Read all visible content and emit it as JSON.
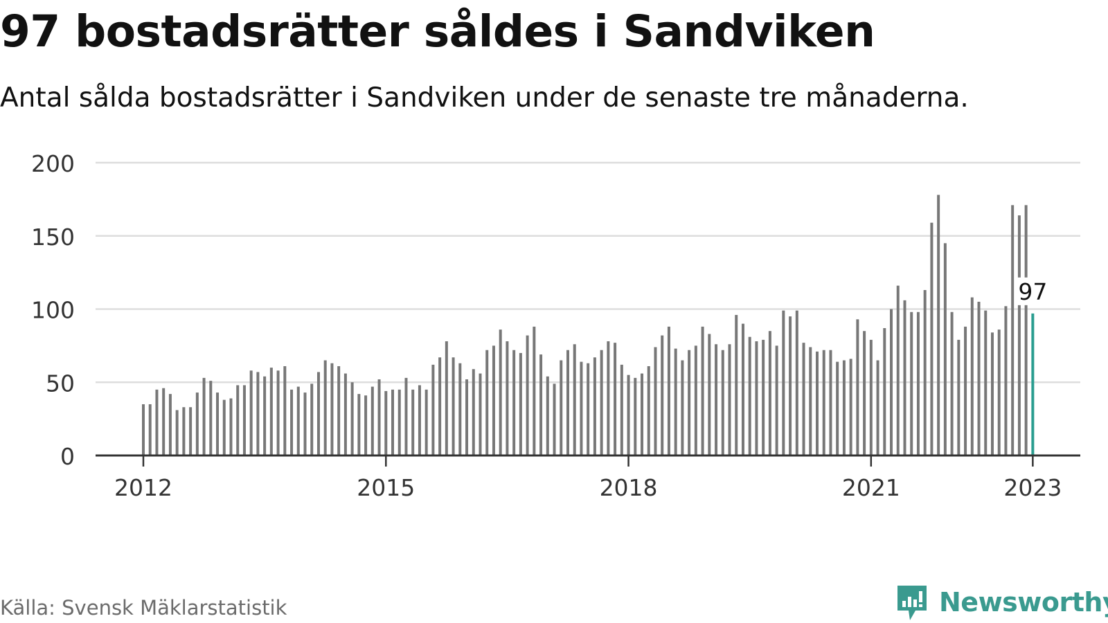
{
  "header": {
    "title": "97 bostadsrätter såldes i Sandviken",
    "subtitle": "Antal sålda bostadsrätter i Sandviken under de senaste tre månaderna."
  },
  "footer": {
    "source": "Källa: Svensk Mäklarstatistik",
    "brand": "Newsworthy"
  },
  "colors": {
    "bar": "#777777",
    "highlight": "#2a9d90",
    "grid": "#dddddd",
    "axis": "#333333",
    "brand": "#3a9a8f"
  },
  "chart_data": {
    "type": "bar",
    "title": "97 bostadsrätter såldes i Sandviken",
    "subtitle": "Antal sålda bostadsrätter i Sandviken under de senaste tre månaderna.",
    "xlabel": "",
    "ylabel": "",
    "ylim": [
      0,
      200
    ],
    "yticks": [
      "0",
      "50",
      "100",
      "150",
      "200"
    ],
    "xticks": [
      "2012",
      "2015",
      "2018",
      "2021",
      "2023"
    ],
    "x_start": "2012-01",
    "x_end": "2023-01",
    "grid": true,
    "legend": "none",
    "highlight": {
      "x": "2023-01",
      "value": 97,
      "label": "97"
    },
    "series": [
      {
        "values": [
          35,
          35,
          45,
          46,
          42,
          31,
          33,
          33,
          43,
          53,
          51,
          43,
          38,
          39,
          48,
          48,
          58,
          57,
          54,
          60,
          58,
          61,
          45,
          47,
          43,
          49,
          57,
          65,
          63,
          61,
          56,
          50,
          42,
          41,
          47,
          52,
          44,
          45,
          45,
          53,
          45,
          48,
          45,
          62,
          67,
          78,
          67,
          63,
          52,
          59,
          56,
          72,
          75,
          86,
          78,
          72,
          70,
          82,
          88,
          69,
          54,
          49,
          65,
          72,
          76,
          64,
          63,
          67,
          72,
          78,
          77,
          62,
          55,
          53,
          56,
          61,
          74,
          82,
          88,
          73,
          65,
          72,
          75,
          88,
          83,
          76,
          72,
          76,
          96,
          90,
          81,
          78,
          79,
          85,
          75,
          99,
          95,
          99,
          77,
          74,
          71,
          72,
          72,
          64,
          65,
          66,
          93,
          85,
          79,
          65,
          87,
          100,
          116,
          106,
          98,
          98,
          113,
          159,
          178,
          145,
          98,
          79,
          88,
          108,
          105,
          99,
          84,
          86,
          102,
          171,
          164,
          171,
          97
        ]
      }
    ]
  }
}
